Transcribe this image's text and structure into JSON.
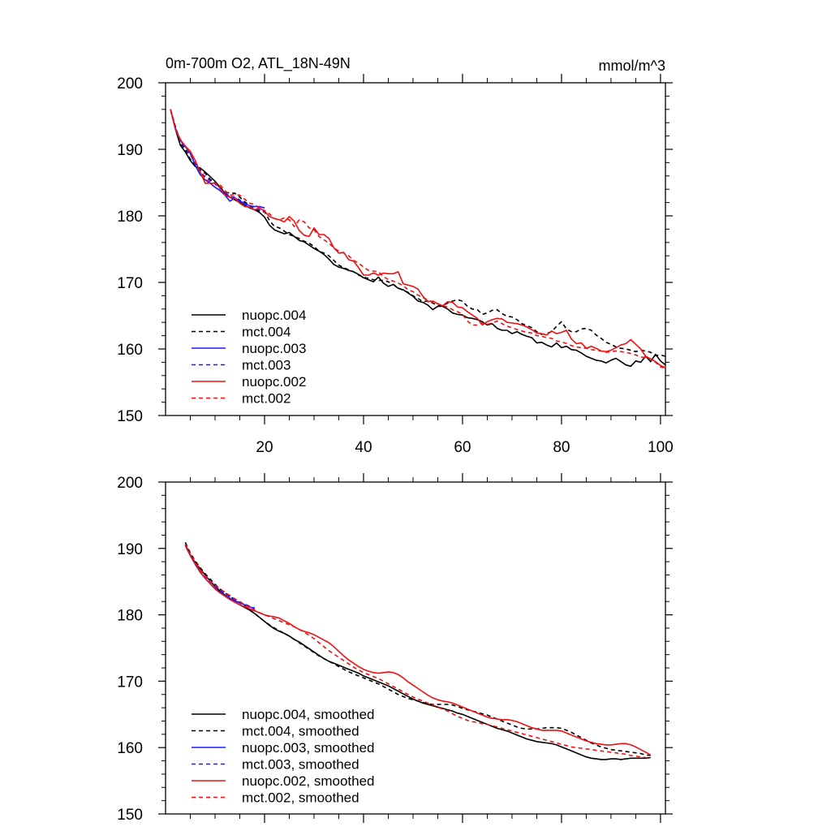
{
  "chart_data": [
    {
      "type": "line",
      "title": "0m-700m O2, ATL_18N-49N",
      "units_label": "mmol/m^3",
      "xlim": [
        0,
        101
      ],
      "ylim": [
        150,
        200
      ],
      "xticks": [
        20,
        40,
        60,
        80,
        100
      ],
      "xtick_labels_shown": true,
      "yticks": [
        150,
        160,
        170,
        180,
        190,
        200
      ],
      "grid": false,
      "legend_position": "bottom-left",
      "series": [
        {
          "name": "nuopc.004",
          "color": "#000000",
          "dash": "solid",
          "x_start": 1,
          "y": [
            196,
            193,
            190.6,
            189.6,
            188.3,
            187.4,
            187.2,
            186.6,
            185.9,
            185.2,
            184.3,
            183.4,
            182.8,
            182.4,
            182,
            181.6,
            181.2,
            180.9,
            180.5,
            179.8,
            178.6,
            177.9,
            177.6,
            177.3,
            177.5,
            176.9,
            176.3,
            176.1,
            175.6,
            175.1,
            174.7,
            174.2,
            173.5,
            172.7,
            172.3,
            172.1,
            171.8,
            171.6,
            171.2,
            170.7,
            170.4,
            170.1,
            170.8,
            169.9,
            169.4,
            169.7,
            169.1,
            168.9,
            168.4,
            167.9,
            167.2,
            167,
            166.6,
            165.9,
            166.4,
            166.4,
            166,
            165.4,
            165.2,
            165.1,
            164.7,
            164.6,
            164.4,
            164.1,
            163.6,
            163.8,
            163.1,
            162.8,
            162.8,
            162.3,
            162.6,
            162.2,
            161.9,
            161.7,
            160.9,
            161,
            160.6,
            160.3,
            160.9,
            160.2,
            160.4,
            159.9,
            159.8,
            159.4,
            158.9,
            158.6,
            158.3,
            158.2,
            157.9,
            158.3,
            158.6,
            158.1,
            157.6,
            157.4,
            158.2,
            158,
            158.9,
            158.1,
            159.2,
            158.2,
            157.6
          ]
        },
        {
          "name": "mct.004",
          "color": "#000000",
          "dash": "dashed",
          "x_start": 1,
          "y": [
            196,
            193.4,
            191,
            189.9,
            188.5,
            187.7,
            186.9,
            186.4,
            185.5,
            185.1,
            184.3,
            183.6,
            183.4,
            183.4,
            182.8,
            182.1,
            181.6,
            181.1,
            180.7,
            180.6,
            179.3,
            178.4,
            178.2,
            177.7,
            177.2,
            176.9,
            176.6,
            176.2,
            175.9,
            175.4,
            174.7,
            174.4,
            174,
            173.3,
            172.6,
            172.2,
            171.9,
            171.6,
            171.1,
            170.8,
            170.6,
            170.4,
            170.3,
            170.3,
            170.1,
            169.7,
            169.2,
            168.8,
            168.5,
            168,
            167.6,
            167.1,
            167.2,
            166.9,
            166.5,
            166.5,
            166.9,
            167.2,
            167.4,
            167.2,
            166.4,
            166,
            165.9,
            165.2,
            165.4,
            165.8,
            165.9,
            165.3,
            164.9,
            164.8,
            164.4,
            163.8,
            163.5,
            163.2,
            162.6,
            162.2,
            162.3,
            162.6,
            163.4,
            164.1,
            163,
            162.6,
            162.6,
            163,
            163.1,
            162.8,
            162.1,
            161.6,
            161,
            160.7,
            160.3,
            160.1,
            160,
            159.8,
            159.6,
            159.8,
            159.7,
            159.5,
            159,
            159.1,
            158.9
          ]
        },
        {
          "name": "nuopc.003",
          "color": "#1a1aff",
          "dash": "solid",
          "x_start": 1,
          "y": [
            196,
            193.2,
            191.3,
            190.4,
            189.4,
            187.6,
            186.2,
            185.4,
            184.9,
            184.3,
            183.8,
            183.1,
            182.2,
            182.7,
            182.2,
            181.9,
            181.5,
            181.4,
            181.4,
            181.2
          ]
        },
        {
          "name": "mct.003",
          "color": "#1a1aff",
          "dash": "dashed",
          "x_start": 1,
          "y": [
            196,
            193.3,
            191.2,
            190.1,
            189.2,
            187.9,
            186.6,
            185.9,
            185.3,
            184.8,
            184.1,
            183.5,
            182.9,
            182.8,
            182.4,
            181.7,
            181.3,
            181.2,
            180.9,
            180.6
          ]
        },
        {
          "name": "nuopc.002",
          "color": "#ee1111",
          "dash": "solid",
          "x_start": 1,
          "y": [
            196,
            193,
            191.4,
            190.5,
            189.7,
            188.3,
            186.6,
            184.9,
            184.9,
            184.9,
            184.2,
            183.1,
            182.8,
            182.6,
            181.9,
            181.4,
            181.3,
            180.9,
            181.2,
            180.7,
            179.9,
            179.6,
            179.4,
            179.1,
            179.9,
            179.2,
            177.8,
            177.1,
            176.9,
            178.2,
            177.2,
            177.2,
            176.6,
            175.2,
            174.4,
            174.5,
            173.4,
            173.2,
            172.2,
            171.1,
            171.1,
            171.4,
            171.1,
            171.4,
            171.3,
            171.3,
            171.6,
            169.8,
            169.6,
            169.4,
            169,
            167.9,
            167.1,
            167.2,
            166.8,
            166.5,
            167.1,
            167,
            166.3,
            166.2,
            165.6,
            165.1,
            164.6,
            163.6,
            164.1,
            164.4,
            164.6,
            164.5,
            164,
            163.9,
            163.8,
            163.6,
            163.3,
            162.9,
            162.4,
            162.3,
            162.1,
            162.7,
            162.3,
            162.5,
            162.8,
            161.5,
            160.8,
            160.9,
            160.1,
            160.4,
            160.1,
            159.7,
            159.6,
            159.8,
            160.2,
            160.6,
            160.8,
            161.4,
            160.7,
            160,
            158.9,
            158.5,
            158.1,
            157.5,
            157.2
          ]
        },
        {
          "name": "mct.002",
          "color": "#ee1111",
          "dash": "dashed",
          "x_start": 1,
          "y": [
            196,
            193,
            191.5,
            190.4,
            189.5,
            188.1,
            186.6,
            185.5,
            185.1,
            184.9,
            184.7,
            183.8,
            183.1,
            183.2,
            183.1,
            182.5,
            181.9,
            181.7,
            181.1,
            180.8,
            180.3,
            179.6,
            179.4,
            179.7,
            179.4,
            178.4,
            179.4,
            179.1,
            178.2,
            177.9,
            176.9,
            176.4,
            175.9,
            175.2,
            174.7,
            174.4,
            174,
            173.3,
            172.9,
            172.3,
            171.8,
            171.7,
            171.6,
            170.9,
            170.4,
            170.2,
            169.9,
            169.5,
            168.9,
            168.6,
            168.1,
            167.7,
            167.4,
            167,
            166.8,
            166.5,
            166.3,
            165.9,
            165.6,
            165.2,
            164.2,
            163.6,
            163.6,
            163.9,
            163.7,
            163.9,
            164.2,
            163.8,
            163.4,
            163.2,
            162.9,
            162.7,
            162.5,
            162.4,
            162,
            161.9,
            161.7,
            161.6,
            161.2,
            161.1,
            160.8,
            160.5,
            160.3,
            160.2,
            160.1,
            159.9,
            159.8,
            159.7,
            159.5,
            159.6,
            159.7,
            159.6,
            159.5,
            159.3,
            159.1,
            158.8,
            158.7,
            158.5,
            158,
            157.3,
            157.1
          ]
        }
      ]
    },
    {
      "type": "line",
      "xlim": [
        0,
        101
      ],
      "ylim": [
        150,
        200
      ],
      "xticks": [
        20,
        40,
        60,
        80,
        100
      ],
      "xtick_labels_shown": false,
      "yticks": [
        150,
        160,
        170,
        180,
        190,
        200
      ],
      "grid": false,
      "legend_position": "bottom-left",
      "series": [
        {
          "name": "nuopc.004, smoothed",
          "color": "#000000",
          "dash": "solid",
          "x_start": 4,
          "y": [
            190.6,
            189,
            187.9,
            186.9,
            186,
            185.1,
            184.3,
            183.6,
            183,
            182.4,
            181.9,
            181.5,
            181.1,
            180.7,
            180.2,
            179.6,
            179,
            178.4,
            177.9,
            177.5,
            177.2,
            176.8,
            176.3,
            175.9,
            175.4,
            174.9,
            174.4,
            173.9,
            173.4,
            173,
            172.7,
            172.4,
            172.1,
            171.8,
            171.5,
            171.2,
            170.8,
            170.5,
            170.2,
            169.9,
            169.6,
            169.3,
            168.9,
            168.5,
            168.1,
            167.7,
            167.3,
            167,
            166.7,
            166.5,
            166.3,
            166.1,
            165.9,
            165.7,
            165.5,
            165.2,
            165,
            164.7,
            164.4,
            164.1,
            163.8,
            163.5,
            163.2,
            162.9,
            162.7,
            162.5,
            162.2,
            161.9,
            161.6,
            161.3,
            161.1,
            160.9,
            160.8,
            160.7,
            160.6,
            160.4,
            160.1,
            159.8,
            159.5,
            159.2,
            158.9,
            158.6,
            158.4,
            158.3,
            158.2,
            158.2,
            158.3,
            158.3,
            158.2,
            158.3,
            158.4,
            158.4,
            158.4,
            158.4,
            158.5
          ]
        },
        {
          "name": "mct.004, smoothed",
          "color": "#000000",
          "dash": "dashed",
          "x_start": 4,
          "y": [
            190.9,
            189.3,
            188.1,
            187.1,
            186.2,
            185.4,
            184.6,
            183.9,
            183.3,
            182.8,
            182.3,
            181.8,
            181.3,
            180.8,
            180.2,
            179.6,
            179,
            178.5,
            178,
            177.6,
            177.2,
            176.8,
            176.3,
            175.8,
            175.3,
            174.8,
            174.3,
            173.8,
            173.4,
            173,
            172.6,
            172.2,
            171.8,
            171.4,
            171.1,
            170.8,
            170.5,
            170.2,
            169.9,
            169.6,
            169.2,
            168.8,
            168.4,
            168,
            167.7,
            167.4,
            167.2,
            167,
            166.8,
            166.6,
            166.5,
            166.5,
            166.5,
            166.5,
            166.4,
            166.2,
            165.9,
            165.7,
            165.5,
            165.3,
            165.1,
            164.9,
            164.6,
            164.3,
            164,
            163.7,
            163.4,
            163.1,
            162.9,
            162.8,
            162.8,
            162.8,
            162.9,
            163,
            163,
            163,
            162.9,
            162.6,
            162.3,
            161.9,
            161.5,
            161.1,
            160.7,
            160.4,
            160.1,
            159.9,
            159.7,
            159.6,
            159.5,
            159.4,
            159.3,
            159.2,
            159.1,
            158.9,
            158.8
          ]
        },
        {
          "name": "nuopc.003, smoothed",
          "color": "#1a1aff",
          "dash": "solid",
          "x_start": 4,
          "y": [
            190.4,
            188.9,
            187.6,
            186.4,
            185.5,
            184.7,
            184,
            183.4,
            182.9,
            182.5,
            182.1,
            181.8,
            181.5,
            181.2,
            180.9
          ]
        },
        {
          "name": "mct.003, smoothed",
          "color": "#1a1aff",
          "dash": "dashed",
          "x_start": 4,
          "y": [
            190.6,
            189.1,
            187.8,
            186.7,
            185.8,
            185,
            184.3,
            183.7,
            183.2,
            182.7,
            182.3,
            181.9,
            181.6,
            181.3,
            181
          ]
        },
        {
          "name": "nuopc.002, smoothed",
          "color": "#ee1111",
          "dash": "solid",
          "x_start": 4,
          "y": [
            190.5,
            189,
            187.7,
            186.5,
            185.5,
            184.7,
            183.9,
            183.3,
            182.8,
            182.3,
            181.9,
            181.5,
            181.2,
            180.9,
            180.6,
            180.3,
            180,
            179.8,
            179.7,
            179.5,
            179.1,
            178.7,
            178.2,
            177.8,
            177.5,
            177.3,
            177,
            176.6,
            176.2,
            175.8,
            175.2,
            174.5,
            173.8,
            173.2,
            172.7,
            172.2,
            171.8,
            171.5,
            171.3,
            171.2,
            171.3,
            171.4,
            171.3,
            171,
            170.5,
            169.9,
            169.4,
            168.9,
            168.4,
            167.9,
            167.5,
            167.2,
            167,
            166.9,
            166.7,
            166.4,
            166.1,
            165.8,
            165.5,
            165.2,
            164.9,
            164.6,
            164.4,
            164.3,
            164.2,
            164.2,
            164.1,
            163.9,
            163.6,
            163.3,
            163,
            162.8,
            162.6,
            162.6,
            162.6,
            162.6,
            162.5,
            162.2,
            161.9,
            161.6,
            161.3,
            161,
            160.8,
            160.6,
            160.5,
            160.4,
            160.4,
            160.5,
            160.6,
            160.6,
            160.4,
            160.1,
            159.7,
            159.3,
            158.9
          ]
        },
        {
          "name": "mct.002, smoothed",
          "color": "#ee1111",
          "dash": "dashed",
          "x_start": 4,
          "y": [
            190.6,
            189.1,
            187.9,
            186.8,
            185.9,
            185.1,
            184.5,
            183.9,
            183.4,
            182.9,
            182.4,
            182,
            181.5,
            181.1,
            180.7,
            180.3,
            180,
            179.7,
            179.4,
            179.1,
            178.8,
            178.5,
            178.2,
            177.8,
            177.4,
            176.9,
            176.4,
            175.8,
            175.2,
            174.6,
            174.1,
            173.6,
            173.1,
            172.6,
            172.1,
            171.7,
            171.3,
            171,
            170.7,
            170.4,
            170,
            169.6,
            169.2,
            168.8,
            168.4,
            168,
            167.6,
            167.3,
            167,
            166.7,
            166.4,
            166.1,
            165.8,
            165.5,
            165.1,
            164.7,
            164.4,
            164.1,
            163.9,
            163.8,
            163.6,
            163.5,
            163.3,
            163.1,
            162.9,
            162.7,
            162.5,
            162.3,
            162.1,
            161.9,
            161.7,
            161.5,
            161.3,
            161.1,
            160.9,
            160.7,
            160.5,
            160.3,
            160.1,
            160,
            159.9,
            159.8,
            159.7,
            159.6,
            159.5,
            159.4,
            159.3,
            159.2,
            159.1,
            159,
            158.8,
            158.7,
            158.6,
            158.5,
            158.4
          ]
        }
      ]
    }
  ]
}
